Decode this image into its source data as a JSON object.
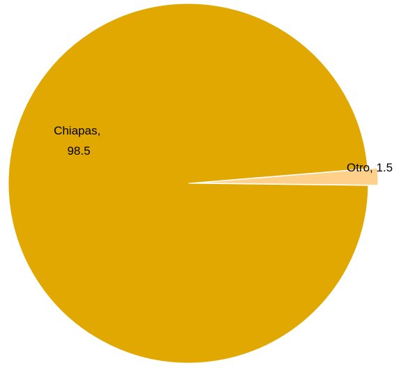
{
  "chart_data": {
    "type": "pie",
    "title": "",
    "slices": [
      {
        "category": "Otro",
        "value": 1.5,
        "label_line1": "Otro, 1.5",
        "label_line2": "",
        "color": "#FFD08A"
      },
      {
        "category": "Chiapas",
        "value": 98.5,
        "label_line1": "Chiapas,",
        "label_line2": "98.5",
        "color": "#E0A800"
      }
    ],
    "legend": "none"
  }
}
